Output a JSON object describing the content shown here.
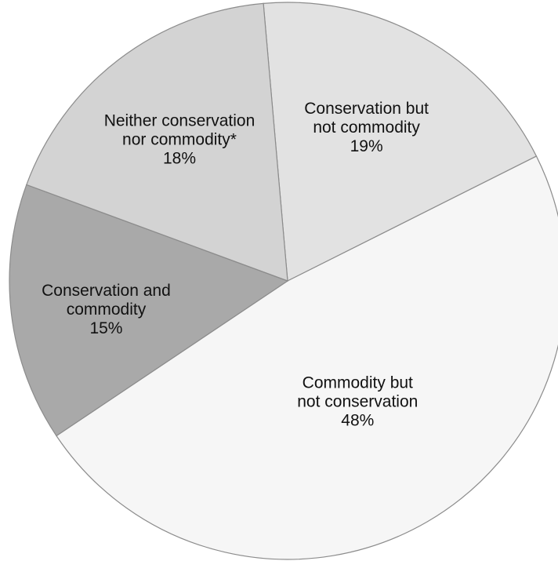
{
  "chart_data": {
    "type": "pie",
    "title": "",
    "slices": [
      {
        "label_lines": [
          "Conservation but",
          "not commodity"
        ],
        "pct_text": "19%",
        "value": 19,
        "color": "#e2e2e2"
      },
      {
        "label_lines": [
          "Commodity but",
          "not conservation"
        ],
        "pct_text": "48%",
        "value": 48,
        "color": "#f6f6f6"
      },
      {
        "label_lines": [
          "Conservation and",
          "commodity"
        ],
        "pct_text": "15%",
        "value": 15,
        "color": "#a9a9a9"
      },
      {
        "label_lines": [
          "Neither conservation",
          "nor commodity*"
        ],
        "pct_text": "18%",
        "value": 18,
        "color": "#d3d3d3"
      }
    ]
  }
}
